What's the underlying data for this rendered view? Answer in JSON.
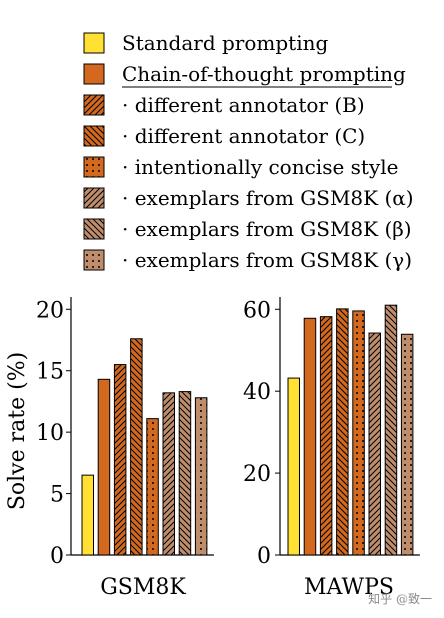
{
  "colors": {
    "standard": "#FFE033",
    "cot": "#D2691E",
    "cot_border": "#000000",
    "alt": "#BF8D6B",
    "line": "#000000"
  },
  "legend": [
    {
      "key": "standard",
      "label": "Standard prompting",
      "pattern": "solid-yellow"
    },
    {
      "key": "cot",
      "label": "Chain-of-thought prompting",
      "pattern": "solid-orange",
      "underline": true
    },
    {
      "key": "annB",
      "label": "· different annotator (B)",
      "pattern": "diag-right"
    },
    {
      "key": "annC",
      "label": "· different annotator (C)",
      "pattern": "diag-left"
    },
    {
      "key": "concise",
      "label": "· intentionally concise style",
      "pattern": "dots-orange"
    },
    {
      "key": "alpha",
      "label": "· exemplars from GSM8K (α)",
      "pattern": "diag-right-tan"
    },
    {
      "key": "beta",
      "label": "· exemplars from GSM8K (β)",
      "pattern": "diag-left-tan"
    },
    {
      "key": "gamma",
      "label": "· exemplars from GSM8K (γ)",
      "pattern": "dots-tan"
    }
  ],
  "ylabel": "Solve rate (%)",
  "chart_data": [
    {
      "type": "bar",
      "title": "GSM8K",
      "ylim": [
        0,
        21
      ],
      "yticks": [
        0,
        5,
        10,
        15,
        20
      ],
      "series": [
        {
          "name": "Standard prompting",
          "values": [
            6.5
          ]
        },
        {
          "name": "Chain-of-thought prompting",
          "values": [
            14.3
          ]
        },
        {
          "name": "· different annotator (B)",
          "values": [
            15.5
          ]
        },
        {
          "name": "· different annotator (C)",
          "values": [
            17.6
          ]
        },
        {
          "name": "· intentionally concise style",
          "values": [
            11.1
          ]
        },
        {
          "name": "· exemplars from GSM8K (α)",
          "values": [
            13.2
          ]
        },
        {
          "name": "· exemplars from GSM8K (β)",
          "values": [
            13.3
          ]
        },
        {
          "name": "· exemplars from GSM8K (γ)",
          "values": [
            12.8
          ]
        }
      ]
    },
    {
      "type": "bar",
      "title": "MAWPS",
      "ylim": [
        0,
        63
      ],
      "yticks": [
        0,
        20,
        40,
        60
      ],
      "series": [
        {
          "name": "Standard prompting",
          "values": [
            43.2
          ]
        },
        {
          "name": "Chain-of-thought prompting",
          "values": [
            57.8
          ]
        },
        {
          "name": "· different annotator (B)",
          "values": [
            58.2
          ]
        },
        {
          "name": "· different annotator (C)",
          "values": [
            60.1
          ]
        },
        {
          "name": "· intentionally concise style",
          "values": [
            59.6
          ]
        },
        {
          "name": "· exemplars from GSM8K (α)",
          "values": [
            54.2
          ]
        },
        {
          "name": "· exemplars from GSM8K (β)",
          "values": [
            61.0
          ]
        },
        {
          "name": "· exemplars from GSM8K (γ)",
          "values": [
            53.9
          ]
        }
      ]
    }
  ],
  "watermark": "知乎 @致一"
}
